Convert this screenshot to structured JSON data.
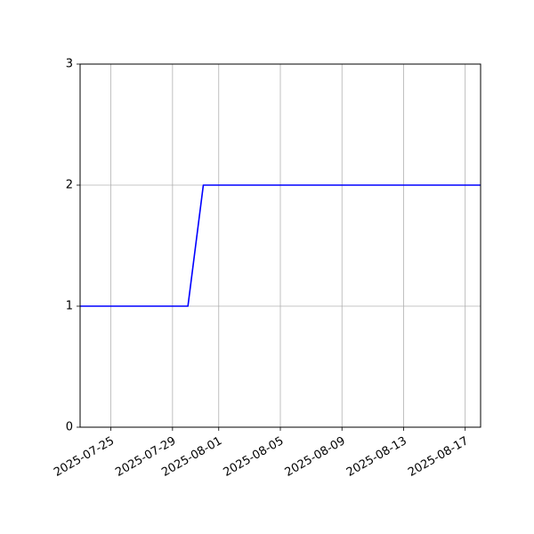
{
  "chart_data": {
    "type": "line",
    "title": "",
    "xlabel": "",
    "ylabel": "",
    "x_type": "date",
    "xlim": [
      "2025-07-23",
      "2025-08-18"
    ],
    "ylim": [
      0,
      3
    ],
    "grid": true,
    "x_ticks": [
      "2025-07-25",
      "2025-07-29",
      "2025-08-01",
      "2025-08-05",
      "2025-08-09",
      "2025-08-13",
      "2025-08-17"
    ],
    "y_ticks": [
      0,
      1,
      2,
      3
    ],
    "series": [
      {
        "color": "#0000ff",
        "x": [
          "2025-07-23",
          "2025-07-30",
          "2025-07-31",
          "2025-08-18"
        ],
        "y": [
          1,
          1,
          2,
          2
        ]
      }
    ]
  }
}
